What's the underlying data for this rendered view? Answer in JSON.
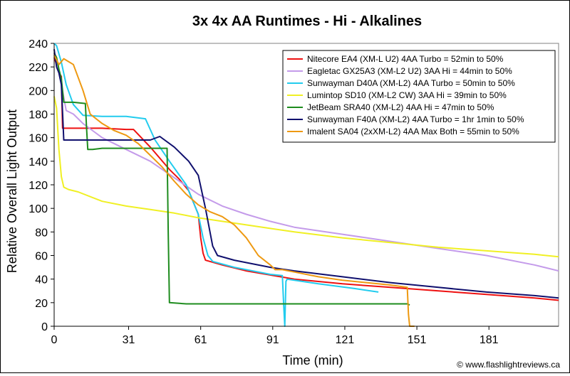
{
  "chart_data": {
    "type": "line",
    "title": "3x 4x AA Runtimes - Hi - Alkalines",
    "xlabel": "Time (min)",
    "ylabel": "Relative Overall Light Output",
    "xlim": [
      0,
      210
    ],
    "ylim": [
      0,
      240
    ],
    "x_ticks": [
      0,
      31,
      61,
      91,
      121,
      151,
      181
    ],
    "y_ticks": [
      0,
      20,
      40,
      60,
      80,
      100,
      120,
      140,
      160,
      180,
      200,
      220,
      240
    ],
    "grid": false,
    "legend_position": "top-right",
    "watermark": "© www.flashlightreviews.ca",
    "series": [
      {
        "name": "Nitecore EA4 (XM-L U2) 4AA Turbo = 52min to 50%",
        "color": "#ee1111",
        "points": [
          [
            0,
            228
          ],
          [
            1,
            222
          ],
          [
            2,
            215
          ],
          [
            3,
            212
          ],
          [
            3.5,
            168
          ],
          [
            10,
            168
          ],
          [
            20,
            168
          ],
          [
            30,
            167
          ],
          [
            33,
            167
          ],
          [
            40,
            152
          ],
          [
            48,
            133
          ],
          [
            52,
            125
          ],
          [
            56,
            115
          ],
          [
            60,
            95
          ],
          [
            61,
            75
          ],
          [
            62,
            62
          ],
          [
            63,
            56
          ],
          [
            70,
            52
          ],
          [
            80,
            47
          ],
          [
            100,
            40
          ],
          [
            120,
            36
          ],
          [
            140,
            33
          ],
          [
            160,
            30
          ],
          [
            180,
            27
          ],
          [
            200,
            24
          ],
          [
            210,
            22
          ]
        ]
      },
      {
        "name": "Eagletac GX25A3 (XM-L2 U2) 3AA Hi = 44min to 50%",
        "color": "#c49bea",
        "points": [
          [
            0,
            232
          ],
          [
            1,
            225
          ],
          [
            3,
            205
          ],
          [
            5,
            183
          ],
          [
            8,
            180
          ],
          [
            12,
            172
          ],
          [
            20,
            160
          ],
          [
            30,
            150
          ],
          [
            40,
            140
          ],
          [
            50,
            126
          ],
          [
            60,
            112
          ],
          [
            70,
            102
          ],
          [
            80,
            95
          ],
          [
            90,
            89
          ],
          [
            100,
            84
          ],
          [
            120,
            78
          ],
          [
            140,
            72
          ],
          [
            160,
            66
          ],
          [
            180,
            60
          ],
          [
            200,
            52
          ],
          [
            210,
            47
          ]
        ]
      },
      {
        "name": "Sunwayman D40A (XM-L2) 4AA Turbo = 50min to 50%",
        "color": "#22ccee",
        "points": [
          [
            0,
            240
          ],
          [
            1,
            238
          ],
          [
            3,
            224
          ],
          [
            5,
            205
          ],
          [
            8,
            188
          ],
          [
            12,
            179
          ],
          [
            20,
            178
          ],
          [
            30,
            178
          ],
          [
            38,
            176
          ],
          [
            42,
            158
          ],
          [
            48,
            140
          ],
          [
            55,
            120
          ],
          [
            60,
            95
          ],
          [
            62,
            75
          ],
          [
            64,
            60
          ],
          [
            66,
            55
          ],
          [
            75,
            50
          ],
          [
            90,
            44
          ],
          [
            95,
            43
          ],
          [
            95.5,
            20
          ],
          [
            96,
            0
          ],
          [
            96.5,
            38
          ],
          [
            97,
            40
          ],
          [
            110,
            36
          ],
          [
            125,
            32
          ],
          [
            135,
            29
          ]
        ]
      },
      {
        "name": "Lumintop SD10 (XM-L2 CW) 3AA Hi = 39min to 50%",
        "color": "#f0f024",
        "points": [
          [
            0,
            195
          ],
          [
            1,
            185
          ],
          [
            2,
            150
          ],
          [
            3,
            127
          ],
          [
            4,
            118
          ],
          [
            6,
            116
          ],
          [
            10,
            114
          ],
          [
            20,
            106
          ],
          [
            30,
            102
          ],
          [
            40,
            99
          ],
          [
            50,
            96
          ],
          [
            60,
            92
          ],
          [
            70,
            89
          ],
          [
            80,
            86
          ],
          [
            90,
            83
          ],
          [
            100,
            80
          ],
          [
            120,
            75
          ],
          [
            140,
            71
          ],
          [
            160,
            67
          ],
          [
            180,
            64
          ],
          [
            200,
            61
          ],
          [
            210,
            59
          ]
        ]
      },
      {
        "name": "JetBeam SRA40 (XM-L2) 4AA Hi = 47min to 50%",
        "color": "#1e8c1e",
        "points": [
          [
            0,
            232
          ],
          [
            1,
            228
          ],
          [
            2,
            218
          ],
          [
            3,
            210
          ],
          [
            4,
            190
          ],
          [
            8,
            190
          ],
          [
            13,
            189
          ],
          [
            13.5,
            168
          ],
          [
            14,
            150
          ],
          [
            16,
            150
          ],
          [
            20,
            151
          ],
          [
            30,
            151
          ],
          [
            40,
            151
          ],
          [
            47,
            151
          ],
          [
            47.5,
            80
          ],
          [
            48,
            20
          ],
          [
            55,
            19
          ],
          [
            70,
            19
          ],
          [
            90,
            19
          ],
          [
            110,
            19
          ],
          [
            130,
            19
          ],
          [
            147,
            19
          ],
          [
            148,
            18
          ]
        ]
      },
      {
        "name": "Sunwayman F40A (XM-L2) 4AA Turbo = 1hr 1min to 50%",
        "color": "#10106e",
        "points": [
          [
            0,
            235
          ],
          [
            1,
            220
          ],
          [
            2,
            215
          ],
          [
            3,
            205
          ],
          [
            4,
            158
          ],
          [
            10,
            158
          ],
          [
            20,
            158
          ],
          [
            30,
            158
          ],
          [
            40,
            158
          ],
          [
            44,
            161
          ],
          [
            50,
            152
          ],
          [
            56,
            140
          ],
          [
            60,
            128
          ],
          [
            63,
            100
          ],
          [
            66,
            68
          ],
          [
            68,
            60
          ],
          [
            75,
            56
          ],
          [
            90,
            50
          ],
          [
            100,
            47
          ],
          [
            120,
            42
          ],
          [
            140,
            37
          ],
          [
            160,
            33
          ],
          [
            180,
            29
          ],
          [
            200,
            26
          ],
          [
            210,
            24
          ]
        ]
      },
      {
        "name": "Imalent SA04 (2xXM-L2) 4AA Max Both = 55min to 50%",
        "color": "#ee9911",
        "points": [
          [
            0,
            230
          ],
          [
            2,
            222
          ],
          [
            4,
            227
          ],
          [
            8,
            222
          ],
          [
            12,
            200
          ],
          [
            15,
            180
          ],
          [
            20,
            172
          ],
          [
            25,
            166
          ],
          [
            30,
            162
          ],
          [
            35,
            155
          ],
          [
            40,
            145
          ],
          [
            45,
            135
          ],
          [
            50,
            123
          ],
          [
            55,
            112
          ],
          [
            60,
            103
          ],
          [
            65,
            97
          ],
          [
            70,
            93
          ],
          [
            75,
            86
          ],
          [
            80,
            75
          ],
          [
            85,
            60
          ],
          [
            90,
            52
          ],
          [
            92,
            48
          ],
          [
            95,
            48
          ],
          [
            100,
            46
          ],
          [
            110,
            42
          ],
          [
            120,
            39
          ],
          [
            130,
            37
          ],
          [
            140,
            35
          ],
          [
            147,
            33
          ],
          [
            147.5,
            10
          ],
          [
            148,
            0
          ],
          [
            150,
            0
          ]
        ]
      }
    ]
  }
}
